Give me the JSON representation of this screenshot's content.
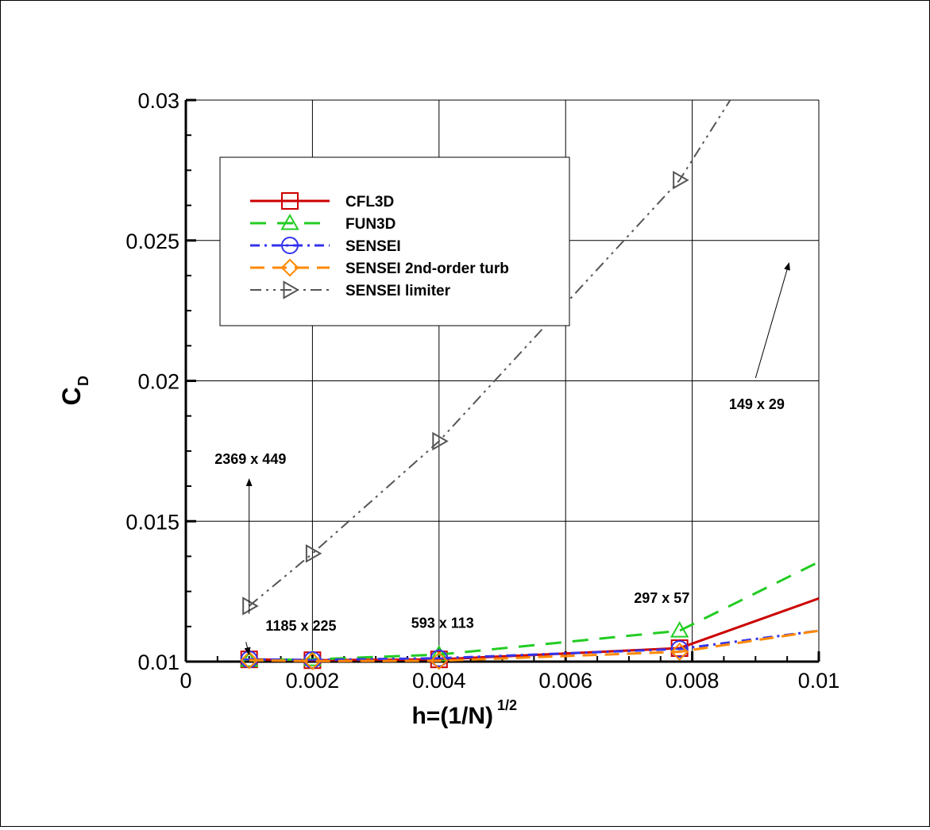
{
  "chart_data": {
    "type": "line",
    "xlabel": "h=(1/N)",
    "xlabel_sup": "1/2",
    "ylabel": "C",
    "ylabel_sub": "D",
    "xlim": [
      0,
      0.01
    ],
    "ylim": [
      0.01,
      0.03
    ],
    "grid": true,
    "legend_position": "top-left",
    "x_ticks": [
      0,
      0.002,
      0.004,
      0.006,
      0.008,
      0.01
    ],
    "x_tick_labels": [
      "0",
      "0.002",
      "0.004",
      "0.006",
      "0.008",
      "0.01"
    ],
    "y_ticks": [
      0.01,
      0.015,
      0.02,
      0.025,
      0.03
    ],
    "y_tick_labels": [
      "0.01",
      "0.015",
      "0.02",
      "0.025",
      "0.03"
    ],
    "series": [
      {
        "name": "CFL3D",
        "color": "#cc0000",
        "dash": "solid",
        "marker": "square",
        "x": [
          0.001,
          0.002,
          0.004,
          0.0078,
          0.01
        ],
        "y": [
          0.01008,
          0.01005,
          0.01008,
          0.01048,
          0.01225
        ],
        "marker_count": 4
      },
      {
        "name": "FUN3D",
        "color": "#22cc22",
        "dash": "long",
        "marker": "triangle-up",
        "x": [
          0.001,
          0.002,
          0.004,
          0.0078,
          0.01
        ],
        "y": [
          0.01005,
          0.01008,
          0.01025,
          0.0111,
          0.01355
        ],
        "marker_count": 4
      },
      {
        "name": "SENSEI",
        "color": "#3333ee",
        "dash": "dashdot",
        "marker": "circle",
        "x": [
          0.001,
          0.002,
          0.004,
          0.0078,
          0.01
        ],
        "y": [
          0.01008,
          0.01006,
          0.01012,
          0.01045,
          0.0111
        ],
        "marker_count": 4
      },
      {
        "name": "SENSEI 2nd-order turb",
        "color": "#ff8800",
        "dash": "longdash",
        "marker": "diamond",
        "x": [
          0.001,
          0.002,
          0.004,
          0.0078,
          0.01
        ],
        "y": [
          0.01005,
          0.01002,
          0.01003,
          0.01035,
          0.0111
        ],
        "marker_count": 4
      },
      {
        "name": "SENSEI limiter",
        "color": "#555555",
        "dash": "dashdotdot",
        "marker": "triangle-right",
        "x": [
          0.001,
          0.002,
          0.004,
          0.0078,
          0.0086
        ],
        "y": [
          0.01198,
          0.01385,
          0.01785,
          0.02715,
          0.03
        ],
        "marker_count": 4
      }
    ],
    "annotations": [
      {
        "text": "2369 x 449",
        "x": 0.000455,
        "y": 0.01705,
        "arrow_from": [
          0.001,
          0.0117
        ],
        "arrow_to": [
          0.001,
          0.0165
        ]
      },
      {
        "text": "1185 x 225",
        "x": 0.00126,
        "y": 0.0111,
        "arrow_from": [
          0.00095,
          0.0107
        ],
        "arrow_to": [
          0.001,
          0.01025
        ]
      },
      {
        "text": "593 x 113",
        "x": 0.00356,
        "y": 0.0112,
        "arrow_from": null,
        "arrow_to": null
      },
      {
        "text": "297 x 57",
        "x": 0.00708,
        "y": 0.0121,
        "arrow_from": null,
        "arrow_to": null
      },
      {
        "text": "149 x 29",
        "x": 0.00858,
        "y": 0.019,
        "arrow_from": [
          0.009,
          0.0201
        ],
        "arrow_to": [
          0.00953,
          0.0242
        ]
      }
    ]
  }
}
